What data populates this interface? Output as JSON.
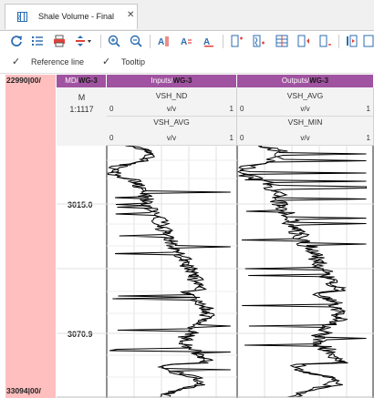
{
  "tab": {
    "title": "Shale Volume - Final",
    "icon": "log-view-icon",
    "close": "✕"
  },
  "toolbar": {
    "icons": [
      "refresh-icon",
      "list-icon",
      "print-icon",
      "scale-arrows-icon",
      "zoom-in-icon",
      "zoom-out-icon",
      "text-style-icon",
      "text-format-icon",
      "text-clear-icon",
      "add-track-icon",
      "add-curve-icon",
      "grid-icon",
      "insert-icon",
      "remove-track-icon",
      "column-icon",
      "more-icon"
    ]
  },
  "options": {
    "reference_line": {
      "check": "✓",
      "label": "Reference line"
    },
    "tooltip": {
      "check": "✓",
      "label": "Tooltip"
    }
  },
  "depth_bar": {
    "top": "22990|00/",
    "bottom": "33094|00/",
    "color": "#ffbfbf"
  },
  "tracks": {
    "md": {
      "header_prefix": "MD/",
      "header_well": "WG-3",
      "unit": "M",
      "scale": "1:1117"
    },
    "inputs": {
      "header_prefix": "Inputs/",
      "header_well": "WG-3",
      "curve1": {
        "name": "VSH_ND",
        "min": "0",
        "max": "1",
        "unit": "v/v"
      },
      "curve2": {
        "name": "VSH_AVG",
        "min": "0",
        "max": "1",
        "unit": "v/v"
      }
    },
    "outputs": {
      "header_prefix": "Outputs/",
      "header_well": "WG-3",
      "curve1": {
        "name": "VSH_AVG",
        "min": "0",
        "max": "1",
        "unit": "v/v"
      },
      "curve2": {
        "name": "VSH_MIN",
        "min": "0",
        "max": "1",
        "unit": "v/v"
      }
    }
  },
  "depth_labels": {
    "first": "3015.0",
    "second": "3070.9"
  },
  "colors": {
    "header_purple": "#a053a0",
    "curve": "#000000",
    "depth_bar": "#ffbfbf"
  }
}
